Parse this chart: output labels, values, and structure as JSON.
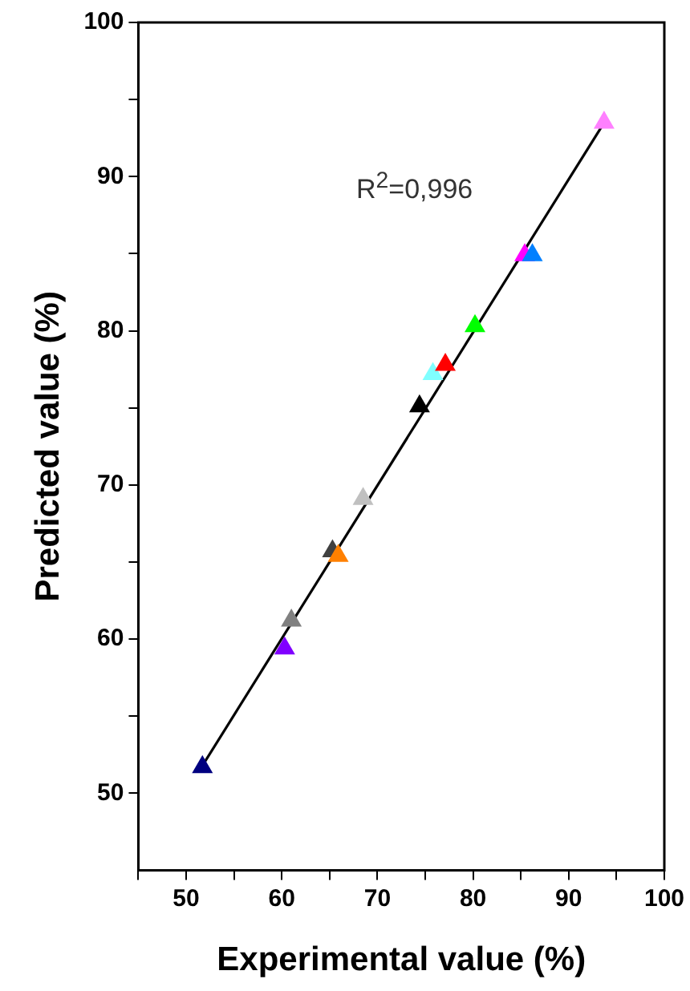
{
  "chart_data": {
    "type": "scatter",
    "xlabel": "Experimental value (%)",
    "ylabel": "Predicted value (%)",
    "xlim": [
      45,
      100
    ],
    "ylim": [
      45,
      100
    ],
    "xticks": [
      {
        "value": 45,
        "label": null
      },
      50,
      {
        "value": 55,
        "label": null
      },
      60,
      {
        "value": 65,
        "label": null
      },
      70,
      {
        "value": 75,
        "label": null
      },
      80,
      {
        "value": 85,
        "label": null
      },
      90,
      {
        "value": 95,
        "label": null
      },
      100
    ],
    "yticks": [
      50,
      {
        "value": 55,
        "label": null
      },
      60,
      {
        "value": 65,
        "label": null
      },
      70,
      {
        "value": 75,
        "label": null
      },
      80,
      {
        "value": 85,
        "label": null
      },
      90,
      {
        "value": 95,
        "label": null
      },
      100
    ],
    "grid": false,
    "legend": false,
    "marker": "triangle",
    "annotations": [
      "R$^{2}$=0,996"
    ],
    "series": [
      {
        "x": [
          51.7,
          60.3,
          61.0,
          65.3,
          65.9,
          68.5,
          74.4,
          75.8,
          77.1,
          80.2,
          85.4,
          86.2,
          93.7
        ],
        "values": [
          51.7,
          59.4,
          61.2,
          65.7,
          65.4,
          69.1,
          75.1,
          77.2,
          77.8,
          80.3,
          84.9,
          84.9,
          93.5
        ],
        "colors": [
          "#000080",
          "#8000ff",
          "#808080",
          "#404040",
          "#ff8000",
          "#c0c0c0",
          "#000000",
          "#80ffff",
          "#ff0000",
          "#00ff00",
          "#ff00ff",
          "#0080ff",
          "#ff80ff"
        ]
      },
      {
        "type": "line",
        "color": "#000000",
        "line_style": "solid",
        "marker": "none",
        "x": [
          51.5,
          93.5
        ],
        "values": [
          51.6,
          93.3
        ]
      }
    ]
  }
}
